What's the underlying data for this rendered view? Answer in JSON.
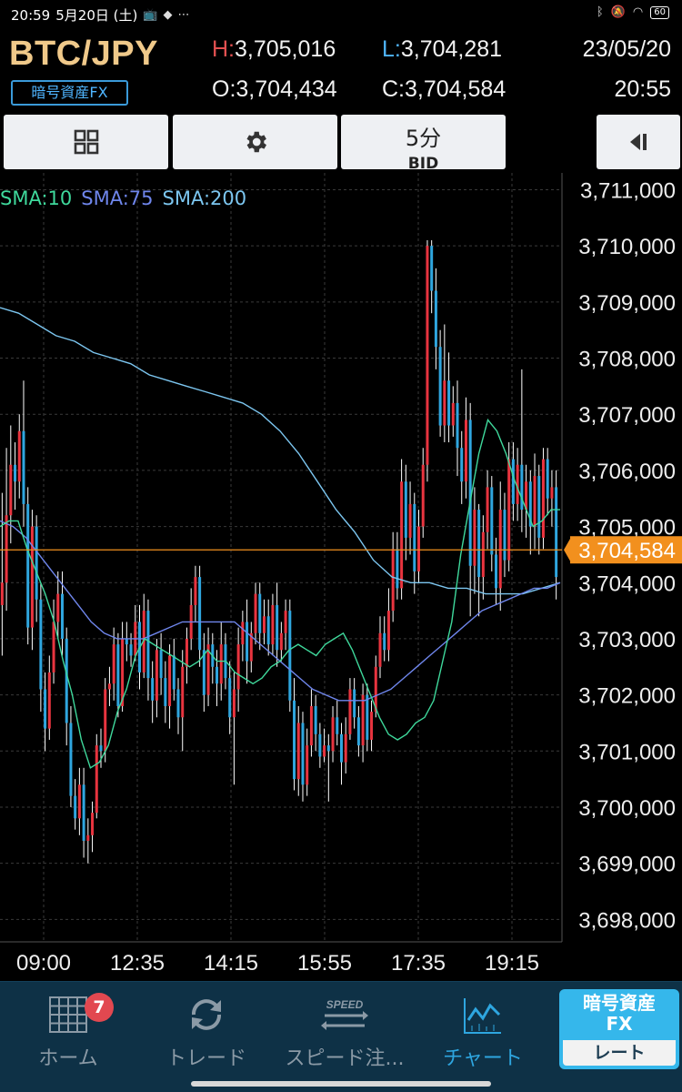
{
  "status_bar": {
    "time": "20:59",
    "date": "5月20日 (土)",
    "icons": [
      "tv-icon",
      "app-icon",
      "more-dots-icon",
      "bluetooth-icon",
      "mute-icon",
      "wifi-icon"
    ],
    "battery": "60"
  },
  "header": {
    "pair": "BTC/JPY",
    "market_badge": "暗号資産FX",
    "high_label": "H:",
    "high_value": "3,705,016",
    "low_label": "L:",
    "low_value": "3,704,281",
    "open_label": "O:",
    "open_value": "3,704,434",
    "close_label": "C:",
    "close_value": "3,704,584",
    "date": "23/05/20",
    "time": "20:55"
  },
  "toolbar": {
    "grid_icon": "grid-icon",
    "settings_icon": "gear-icon",
    "interval": "5分",
    "price_side": "BID",
    "panel_icon": "collapse-panel-icon"
  },
  "indicators": [
    {
      "label": "SMA:10",
      "color": "#3fd99c"
    },
    {
      "label": "SMA:75",
      "color": "#6f86ec"
    },
    {
      "label": "SMA:200",
      "color": "#7cc6f0"
    }
  ],
  "colors": {
    "up_candle": "#e8343f",
    "down_candle": "#2fa6df",
    "current_price": "#f2901e",
    "nav_active": "#2ea6e0"
  },
  "chart_data": {
    "type": "candlestick",
    "y_ticks": [
      "3,711,000",
      "3,710,000",
      "3,709,000",
      "3,708,000",
      "3,707,000",
      "3,706,000",
      "3,705,000",
      "3,704,000",
      "3,703,000",
      "3,702,000",
      "3,701,000",
      "3,700,000",
      "3,699,000",
      "3,698,000"
    ],
    "y_tick_values": [
      3711000,
      3710000,
      3709000,
      3708000,
      3707000,
      3706000,
      3705000,
      3704000,
      3703000,
      3702000,
      3701000,
      3700000,
      3699000,
      3698000
    ],
    "ylim": [
      3697600,
      3711300
    ],
    "x_ticks": [
      "09:00",
      "12:35",
      "14:15",
      "15:55",
      "17:35",
      "19:15"
    ],
    "current_price": 3704584,
    "current_price_label": "3,704,584",
    "candles": [
      [
        3703600,
        3704000,
        3702700,
        3705600
      ],
      [
        3704000,
        3705200,
        3703500,
        3706400
      ],
      [
        3705200,
        3706100,
        3704700,
        3706800
      ],
      [
        3706100,
        3705800,
        3705300,
        3706500
      ],
      [
        3705800,
        3706700,
        3705500,
        3707000
      ],
      [
        3706700,
        3705400,
        3705000,
        3707600
      ],
      [
        3705400,
        3703200,
        3702900,
        3705700
      ],
      [
        3703200,
        3705000,
        3702800,
        3705300
      ],
      [
        3705000,
        3703700,
        3703300,
        3705200
      ],
      [
        3703700,
        3702100,
        3701700,
        3704000
      ],
      [
        3702100,
        3701400,
        3701000,
        3702400
      ],
      [
        3701400,
        3702400,
        3701200,
        3702700
      ],
      [
        3702400,
        3703300,
        3702200,
        3703700
      ],
      [
        3703300,
        3703800,
        3703000,
        3704200
      ],
      [
        3703800,
        3703000,
        3702700,
        3704200
      ],
      [
        3703000,
        3701500,
        3701100,
        3703200
      ],
      [
        3701500,
        3700200,
        3700000,
        3701800
      ],
      [
        3700200,
        3699800,
        3699600,
        3700500
      ],
      [
        3699800,
        3700400,
        3699500,
        3700700
      ],
      [
        3700400,
        3699400,
        3699100,
        3700700
      ],
      [
        3699400,
        3699500,
        3699000,
        3699800
      ],
      [
        3699500,
        3699900,
        3699200,
        3700100
      ],
      [
        3699900,
        3701100,
        3699800,
        3701300
      ],
      [
        3701100,
        3701000,
        3700700,
        3701400
      ],
      [
        3701000,
        3702100,
        3700800,
        3702300
      ],
      [
        3702100,
        3702200,
        3701800,
        3702500
      ],
      [
        3702200,
        3702900,
        3701900,
        3703200
      ],
      [
        3702900,
        3701800,
        3701600,
        3703100
      ],
      [
        3701800,
        3703000,
        3701700,
        3703300
      ],
      [
        3703000,
        3702900,
        3702600,
        3703300
      ],
      [
        3702900,
        3702700,
        3702500,
        3703100
      ],
      [
        3702700,
        3703300,
        3702600,
        3703600
      ],
      [
        3703300,
        3702400,
        3702100,
        3703600
      ],
      [
        3702400,
        3703500,
        3702300,
        3703800
      ],
      [
        3703500,
        3702300,
        3701900,
        3703700
      ],
      [
        3702300,
        3701900,
        3701500,
        3702600
      ],
      [
        3701900,
        3702800,
        3701600,
        3703000
      ],
      [
        3702800,
        3702300,
        3702000,
        3703100
      ],
      [
        3702300,
        3701800,
        3701500,
        3702600
      ],
      [
        3701800,
        3702700,
        3701400,
        3702900
      ],
      [
        3702700,
        3702100,
        3701900,
        3703000
      ],
      [
        3702100,
        3701600,
        3701300,
        3702300
      ],
      [
        3701600,
        3702500,
        3701000,
        3702800
      ],
      [
        3702500,
        3703000,
        3702200,
        3703200
      ],
      [
        3703000,
        3703600,
        3702800,
        3703900
      ],
      [
        3703600,
        3704100,
        3703300,
        3704300
      ],
      [
        3704100,
        3702800,
        3702500,
        3704300
      ],
      [
        3702800,
        3702000,
        3701700,
        3703100
      ],
      [
        3702000,
        3702900,
        3701800,
        3703200
      ],
      [
        3702900,
        3702500,
        3702200,
        3703100
      ],
      [
        3702500,
        3702200,
        3701800,
        3702800
      ],
      [
        3702200,
        3702900,
        3701900,
        3703300
      ],
      [
        3702900,
        3702300,
        3702100,
        3703100
      ],
      [
        3702300,
        3701600,
        3701300,
        3702600
      ],
      [
        3701600,
        3702100,
        3700400,
        3702400
      ],
      [
        3702100,
        3702900,
        3701700,
        3703200
      ],
      [
        3702900,
        3703300,
        3702600,
        3703500
      ],
      [
        3703300,
        3702600,
        3702200,
        3703700
      ],
      [
        3702600,
        3703100,
        3702400,
        3703300
      ],
      [
        3703100,
        3703800,
        3702900,
        3704000
      ],
      [
        3703800,
        3703100,
        3702800,
        3704000
      ],
      [
        3703100,
        3703400,
        3702900,
        3703700
      ],
      [
        3703400,
        3702900,
        3702700,
        3703700
      ],
      [
        3702900,
        3703600,
        3702700,
        3703800
      ],
      [
        3703600,
        3702800,
        3702500,
        3704000
      ],
      [
        3702800,
        3703100,
        3702600,
        3703300
      ],
      [
        3703100,
        3703500,
        3702800,
        3703700
      ],
      [
        3703500,
        3701900,
        3701700,
        3703700
      ],
      [
        3701900,
        3700500,
        3700300,
        3702300
      ],
      [
        3700500,
        3701500,
        3700200,
        3701800
      ],
      [
        3701500,
        3700400,
        3700100,
        3701700
      ],
      [
        3700400,
        3701100,
        3700200,
        3701400
      ],
      [
        3701100,
        3701800,
        3700900,
        3702100
      ],
      [
        3701800,
        3701300,
        3701000,
        3702000
      ],
      [
        3701300,
        3700900,
        3700700,
        3701500
      ],
      [
        3700900,
        3701100,
        3700800,
        3701400
      ],
      [
        3701100,
        3701000,
        3700100,
        3701300
      ],
      [
        3701000,
        3701600,
        3700800,
        3701800
      ],
      [
        3701600,
        3701300,
        3701100,
        3701900
      ],
      [
        3701300,
        3700800,
        3700400,
        3701500
      ],
      [
        3700800,
        3701300,
        3700600,
        3701600
      ],
      [
        3701300,
        3702100,
        3701200,
        3702300
      ],
      [
        3702100,
        3701600,
        3701400,
        3702300
      ],
      [
        3701600,
        3701100,
        3700900,
        3701800
      ],
      [
        3701100,
        3702000,
        3700800,
        3702200
      ],
      [
        3702000,
        3701200,
        3701000,
        3702200
      ],
      [
        3701200,
        3701700,
        3701000,
        3701900
      ],
      [
        3701700,
        3702500,
        3701600,
        3702700
      ],
      [
        3702500,
        3703100,
        3702300,
        3703400
      ],
      [
        3703100,
        3702800,
        3702600,
        3703400
      ],
      [
        3702800,
        3703500,
        3702600,
        3703900
      ],
      [
        3703500,
        3704600,
        3703300,
        3704900
      ],
      [
        3704600,
        3703900,
        3703700,
        3704900
      ],
      [
        3703900,
        3705800,
        3703700,
        3706200
      ],
      [
        3705800,
        3704800,
        3704400,
        3706100
      ],
      [
        3704800,
        3705400,
        3704500,
        3705800
      ],
      [
        3705400,
        3704200,
        3703800,
        3705600
      ],
      [
        3704200,
        3705000,
        3704000,
        3705300
      ],
      [
        3705000,
        3706100,
        3704800,
        3706400
      ],
      [
        3706100,
        3710000,
        3705800,
        3710100
      ],
      [
        3710000,
        3709200,
        3708800,
        3710100
      ],
      [
        3709200,
        3708200,
        3707800,
        3709600
      ],
      [
        3708200,
        3706800,
        3706600,
        3708500
      ],
      [
        3706800,
        3707600,
        3706500,
        3708600
      ],
      [
        3707600,
        3706800,
        3706500,
        3708100
      ],
      [
        3706800,
        3707200,
        3706600,
        3707500
      ],
      [
        3707200,
        3706400,
        3705900,
        3707600
      ],
      [
        3706400,
        3705800,
        3705400,
        3706700
      ],
      [
        3705800,
        3706900,
        3705500,
        3707300
      ],
      [
        3706900,
        3704300,
        3703400,
        3707200
      ],
      [
        3704300,
        3705300,
        3703800,
        3705700
      ],
      [
        3705300,
        3704100,
        3703400,
        3705400
      ],
      [
        3704100,
        3704900,
        3703700,
        3705200
      ],
      [
        3704900,
        3705700,
        3704600,
        3706000
      ],
      [
        3705700,
        3704500,
        3704200,
        3705900
      ],
      [
        3704500,
        3703900,
        3703600,
        3704800
      ],
      [
        3703900,
        3705300,
        3703500,
        3705800
      ],
      [
        3705300,
        3704400,
        3704100,
        3705600
      ],
      [
        3704400,
        3706200,
        3704200,
        3706500
      ],
      [
        3706200,
        3705400,
        3705100,
        3706500
      ],
      [
        3705400,
        3706100,
        3705100,
        3706400
      ],
      [
        3706100,
        3705300,
        3704900,
        3707800
      ],
      [
        3705300,
        3705800,
        3704800,
        3706100
      ],
      [
        3705800,
        3705000,
        3704500,
        3706000
      ],
      [
        3705000,
        3705900,
        3704600,
        3706300
      ],
      [
        3705900,
        3704800,
        3704500,
        3706100
      ],
      [
        3704800,
        3706200,
        3704600,
        3706400
      ],
      [
        3706200,
        3705500,
        3705200,
        3706400
      ],
      [
        3705500,
        3705700,
        3705000,
        3706000
      ],
      [
        3705700,
        3704100,
        3703700,
        3706000
      ]
    ],
    "sma10": [
      3705000,
      3705100,
      3705100,
      3704600,
      3704200,
      3703800,
      3703300,
      3702600,
      3702000,
      3701200,
      3700700,
      3700800,
      3701100,
      3701700,
      3702100,
      3702700,
      3703000,
      3702900,
      3702800,
      3702700,
      3702600,
      3702500,
      3702600,
      3702800,
      3702600,
      3702600,
      3702400,
      3702300,
      3702200,
      3702300,
      3702500,
      3702600,
      3702800,
      3702900,
      3702800,
      3702700,
      3702900,
      3703000,
      3703100,
      3702800,
      3702400,
      3702000,
      3701600,
      3701300,
      3701200,
      3701300,
      3701500,
      3701600,
      3701900,
      3702600,
      3703300,
      3704500,
      3705400,
      3706300,
      3706900,
      3706700,
      3706300,
      3705800,
      3705400,
      3705000,
      3705100,
      3705300,
      3705300
    ],
    "sma75": [
      3705100,
      3705000,
      3704800,
      3704500,
      3704200,
      3703900,
      3703600,
      3703300,
      3703100,
      3703000,
      3703000,
      3703000,
      3703100,
      3703200,
      3703300,
      3703300,
      3703300,
      3703300,
      3703300,
      3703100,
      3702900,
      3702700,
      3702500,
      3702300,
      3702100,
      3702000,
      3701900,
      3701900,
      3701900,
      3702000,
      3702100,
      3702300,
      3702500,
      3702700,
      3702900,
      3703100,
      3703300,
      3703500,
      3703600,
      3703700,
      3703800,
      3703900,
      3703900,
      3704000
    ],
    "sma200": [
      3708900,
      3708800,
      3708600,
      3708400,
      3708300,
      3708100,
      3708000,
      3707900,
      3707700,
      3707600,
      3707500,
      3707400,
      3707300,
      3707200,
      3707000,
      3706700,
      3706300,
      3705800,
      3705300,
      3704900,
      3704400,
      3704100,
      3704000,
      3704000,
      3703900,
      3703900,
      3703800,
      3703800,
      3703800,
      3703900,
      3704000
    ]
  },
  "bottom_nav": {
    "home_label": "ホーム",
    "home_badge": "7",
    "trade_label": "トレード",
    "speed_label": "スピード注...",
    "speed_icon_text": "SPEED",
    "chart_label": "チャート",
    "fx_switch_top": "暗号資産\nFX",
    "fx_switch_bottom": "レート"
  }
}
